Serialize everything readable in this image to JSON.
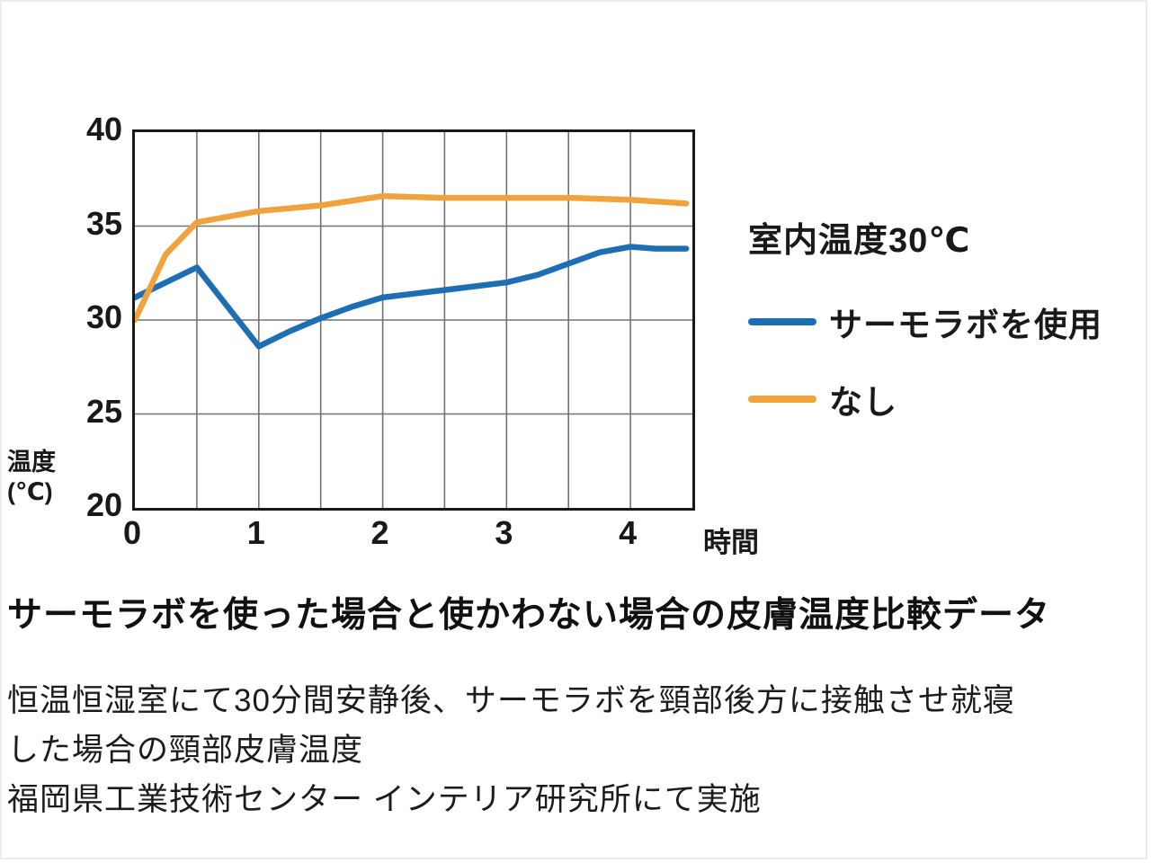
{
  "chart_data": {
    "type": "line",
    "title": "",
    "xlabel": "時間",
    "ylabel": "温度(℃)",
    "ylabel_lines": [
      "温度",
      "(℃)"
    ],
    "xlim": [
      0,
      4.5
    ],
    "ylim": [
      20,
      40
    ],
    "xticks": [
      0,
      1,
      2,
      3,
      4
    ],
    "yticks": [
      40,
      35,
      30,
      25,
      20
    ],
    "grid_x_step": 0.5,
    "grid_y_step": 5,
    "grid": true,
    "legend_position": "right",
    "series": [
      {
        "name": "サーモラボを使用",
        "color": "#1e6eb4",
        "points": [
          [
            0,
            31.2
          ],
          [
            0.5,
            32.8
          ],
          [
            1,
            28.6
          ],
          [
            1.25,
            29.4
          ],
          [
            1.5,
            30.1
          ],
          [
            1.75,
            30.7
          ],
          [
            2,
            31.2
          ],
          [
            2.25,
            31.4
          ],
          [
            2.5,
            31.6
          ],
          [
            2.75,
            31.8
          ],
          [
            3,
            32.0
          ],
          [
            3.25,
            32.4
          ],
          [
            3.5,
            33.0
          ],
          [
            3.75,
            33.6
          ],
          [
            4.0,
            33.9
          ],
          [
            4.2,
            33.8
          ],
          [
            4.45,
            33.8
          ]
        ]
      },
      {
        "name": "なし",
        "color": "#f0a23c",
        "points": [
          [
            0,
            30.0
          ],
          [
            0.25,
            33.5
          ],
          [
            0.5,
            35.2
          ],
          [
            1,
            35.8
          ],
          [
            1.5,
            36.1
          ],
          [
            2,
            36.6
          ],
          [
            2.5,
            36.5
          ],
          [
            3,
            36.5
          ],
          [
            3.5,
            36.5
          ],
          [
            4,
            36.4
          ],
          [
            4.45,
            36.2
          ]
        ]
      }
    ]
  },
  "legend": {
    "title": "室内温度30℃",
    "items": [
      {
        "label": "サーモラボを使用",
        "color": "#1e6eb4"
      },
      {
        "label": "なし",
        "color": "#f0a23c"
      }
    ]
  },
  "caption": {
    "title": "サーモラボを使った場合と使かわない場合の皮膚温度比較データ",
    "lines": [
      "恒温恒湿室にて30分間安静後、サーモラボを頸部後方に接触させ就寝",
      "した場合の頸部皮膚温度",
      "福岡県工業技術センター インテリア研究所にて実施"
    ]
  }
}
